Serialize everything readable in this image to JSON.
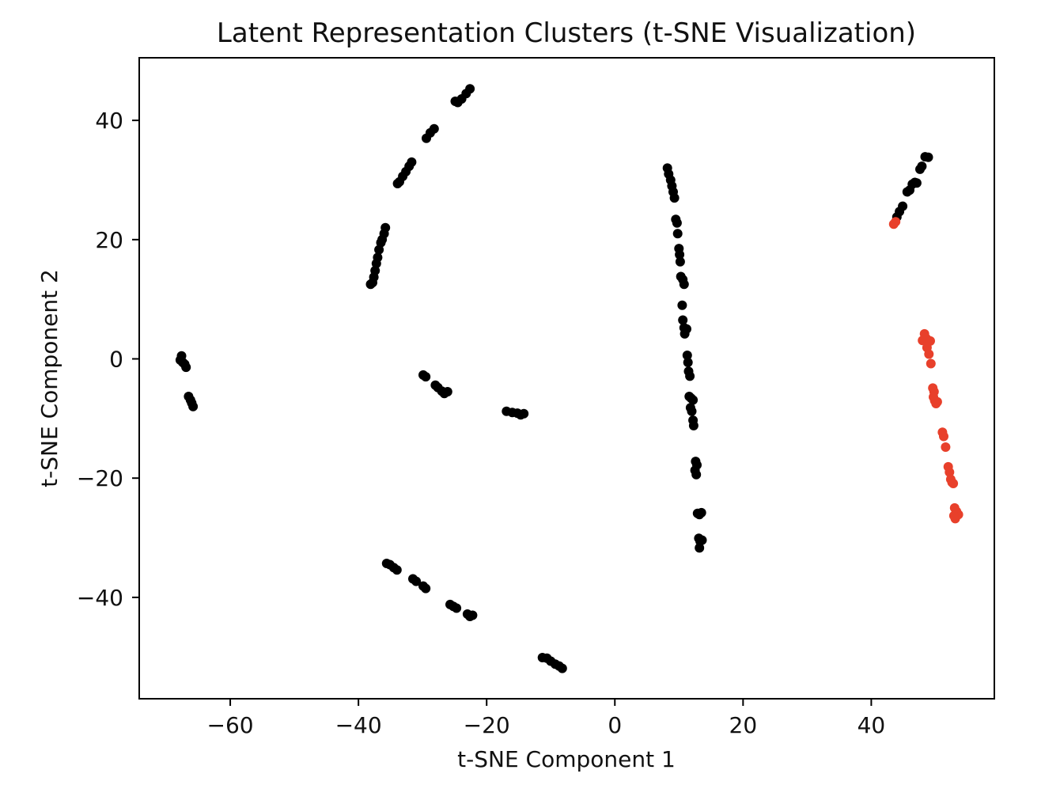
{
  "chart_data": {
    "type": "scatter",
    "title": "Latent Representation Clusters (t-SNE Visualization)",
    "xlabel": "t-SNE Component 1",
    "ylabel": "t-SNE Component 2",
    "xlim": [
      -74.2,
      59.2
    ],
    "ylim": [
      -57,
      50.5
    ],
    "xticks": [
      -60,
      -40,
      -20,
      0,
      20,
      40
    ],
    "yticks": [
      -40,
      -20,
      0,
      20,
      40
    ],
    "grid": false,
    "colors": {
      "black": "#000000",
      "red": "#e8402b"
    },
    "series": [
      {
        "color": "black",
        "points": [
          [
            -22.6,
            45.3
          ],
          [
            -23.2,
            44.5
          ],
          [
            -23.9,
            43.6
          ],
          [
            -24.5,
            43.0
          ],
          [
            -24.9,
            43.2
          ],
          [
            -28.2,
            38.6
          ],
          [
            -28.8,
            37.9
          ],
          [
            -29.4,
            37.0
          ],
          [
            -31.7,
            33.0
          ],
          [
            -32.1,
            32.3
          ],
          [
            -32.6,
            31.4
          ],
          [
            -33.1,
            30.6
          ],
          [
            -33.6,
            29.7
          ],
          [
            -33.9,
            29.4
          ],
          [
            -35.8,
            22.0
          ],
          [
            -36.0,
            21.0
          ],
          [
            -36.3,
            20.0
          ],
          [
            -36.5,
            19.5
          ],
          [
            -36.8,
            18.3
          ],
          [
            -37.0,
            17.0
          ],
          [
            -37.2,
            16.0
          ],
          [
            -37.4,
            14.8
          ],
          [
            -37.6,
            13.7
          ],
          [
            -37.8,
            12.8
          ],
          [
            -38.1,
            12.5
          ],
          [
            -67.8,
            -0.2
          ],
          [
            -67.6,
            0.5
          ],
          [
            -67.4,
            -0.6
          ],
          [
            -67.1,
            -0.9
          ],
          [
            -66.9,
            -1.4
          ],
          [
            -66.5,
            -6.3
          ],
          [
            -66.2,
            -6.9
          ],
          [
            -66.0,
            -7.4
          ],
          [
            -65.8,
            -8.0
          ],
          [
            -29.9,
            -2.7
          ],
          [
            -29.5,
            -3.0
          ],
          [
            -28.0,
            -4.4
          ],
          [
            -27.6,
            -4.8
          ],
          [
            -27.0,
            -5.4
          ],
          [
            -26.6,
            -5.8
          ],
          [
            -26.1,
            -5.5
          ],
          [
            -16.9,
            -8.8
          ],
          [
            -16.0,
            -9.0
          ],
          [
            -15.2,
            -9.1
          ],
          [
            -14.7,
            -9.4
          ],
          [
            -14.2,
            -9.2
          ],
          [
            -35.6,
            -34.3
          ],
          [
            -35.1,
            -34.5
          ],
          [
            -34.5,
            -35.0
          ],
          [
            -34.0,
            -35.4
          ],
          [
            -31.5,
            -36.9
          ],
          [
            -31.0,
            -37.3
          ],
          [
            -29.9,
            -38.1
          ],
          [
            -29.5,
            -38.5
          ],
          [
            -25.7,
            -41.2
          ],
          [
            -25.2,
            -41.5
          ],
          [
            -24.7,
            -41.8
          ],
          [
            -23.0,
            -42.8
          ],
          [
            -22.6,
            -43.2
          ],
          [
            -22.2,
            -43.0
          ],
          [
            -11.3,
            -50.1
          ],
          [
            -10.6,
            -50.2
          ],
          [
            -10.0,
            -50.7
          ],
          [
            -9.3,
            -51.2
          ],
          [
            -8.7,
            -51.5
          ],
          [
            -8.2,
            -51.9
          ],
          [
            8.2,
            32.0
          ],
          [
            8.4,
            31.0
          ],
          [
            8.7,
            30.0
          ],
          [
            8.9,
            29.0
          ],
          [
            9.1,
            28.0
          ],
          [
            9.3,
            27.0
          ],
          [
            9.5,
            23.4
          ],
          [
            9.7,
            22.8
          ],
          [
            9.8,
            21.0
          ],
          [
            10.0,
            18.5
          ],
          [
            10.1,
            17.5
          ],
          [
            10.2,
            16.3
          ],
          [
            10.3,
            13.8
          ],
          [
            10.6,
            13.3
          ],
          [
            10.8,
            12.5
          ],
          [
            10.5,
            9.0
          ],
          [
            10.6,
            6.5
          ],
          [
            10.8,
            5.2
          ],
          [
            11.2,
            5.0
          ],
          [
            10.9,
            4.2
          ],
          [
            11.3,
            0.6
          ],
          [
            11.4,
            -0.6
          ],
          [
            11.5,
            -2.1
          ],
          [
            11.7,
            -2.9
          ],
          [
            11.6,
            -6.3
          ],
          [
            11.9,
            -6.6
          ],
          [
            12.2,
            -6.9
          ],
          [
            11.8,
            -8.2
          ],
          [
            12.0,
            -8.8
          ],
          [
            12.2,
            -10.3
          ],
          [
            12.3,
            -11.2
          ],
          [
            12.6,
            -17.2
          ],
          [
            12.8,
            -17.8
          ],
          [
            12.5,
            -18.7
          ],
          [
            12.7,
            -19.4
          ],
          [
            12.9,
            -25.9
          ],
          [
            13.2,
            -26.1
          ],
          [
            13.5,
            -25.8
          ],
          [
            13.1,
            -30.1
          ],
          [
            13.3,
            -30.6
          ],
          [
            13.6,
            -30.4
          ],
          [
            13.2,
            -31.7
          ],
          [
            44.0,
            23.8
          ],
          [
            44.4,
            24.7
          ],
          [
            44.9,
            25.6
          ],
          [
            45.6,
            28.0
          ],
          [
            46.0,
            28.3
          ],
          [
            46.4,
            29.3
          ],
          [
            46.8,
            29.6
          ],
          [
            47.1,
            29.5
          ],
          [
            47.6,
            31.8
          ],
          [
            47.9,
            32.3
          ],
          [
            48.4,
            33.9
          ],
          [
            48.9,
            33.8
          ]
        ]
      },
      {
        "color": "red",
        "points": [
          [
            43.5,
            22.6
          ],
          [
            43.8,
            23.0
          ],
          [
            48.3,
            4.2
          ],
          [
            48.0,
            3.1
          ],
          [
            48.6,
            3.4
          ],
          [
            49.2,
            3.0
          ],
          [
            48.7,
            1.9
          ],
          [
            49.0,
            0.8
          ],
          [
            49.3,
            -0.8
          ],
          [
            49.6,
            -4.9
          ],
          [
            49.8,
            -5.5
          ],
          [
            49.7,
            -6.4
          ],
          [
            49.9,
            -7.0
          ],
          [
            50.3,
            -7.2
          ],
          [
            50.1,
            -7.5
          ],
          [
            51.1,
            -12.3
          ],
          [
            51.3,
            -13.0
          ],
          [
            51.6,
            -14.8
          ],
          [
            52.0,
            -18.1
          ],
          [
            52.2,
            -19.0
          ],
          [
            52.4,
            -20.2
          ],
          [
            52.6,
            -20.7
          ],
          [
            52.8,
            -20.9
          ],
          [
            53.0,
            -25.0
          ],
          [
            53.3,
            -25.6
          ],
          [
            53.6,
            -26.1
          ],
          [
            53.1,
            -26.8
          ],
          [
            52.9,
            -26.3
          ]
        ]
      }
    ]
  }
}
